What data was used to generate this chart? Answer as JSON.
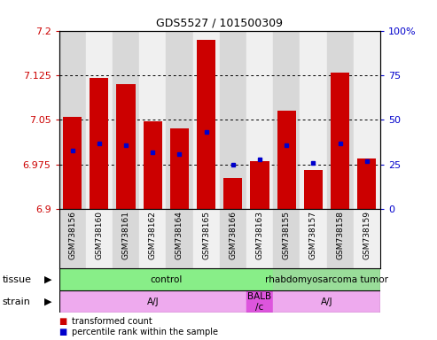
{
  "title": "GDS5527 / 101500309",
  "samples": [
    "GSM738156",
    "GSM738160",
    "GSM738161",
    "GSM738162",
    "GSM738164",
    "GSM738165",
    "GSM738166",
    "GSM738163",
    "GSM738155",
    "GSM738157",
    "GSM738158",
    "GSM738159"
  ],
  "bar_values": [
    7.055,
    7.12,
    7.11,
    7.048,
    7.035,
    7.185,
    6.952,
    6.98,
    7.065,
    6.965,
    7.13,
    6.985
  ],
  "percentile_values": [
    33,
    37,
    36,
    32,
    31,
    43,
    25,
    28,
    36,
    26,
    37,
    27
  ],
  "ymin": 6.9,
  "ymax": 7.2,
  "yticks": [
    6.9,
    6.975,
    7.05,
    7.125,
    7.2
  ],
  "ytick_labels": [
    "6.9",
    "6.975",
    "7.05",
    "7.125",
    "7.2"
  ],
  "y2min": 0,
  "y2max": 100,
  "y2ticks": [
    0,
    25,
    50,
    75,
    100
  ],
  "y2tick_labels": [
    "0",
    "25",
    "50",
    "75",
    "100%"
  ],
  "bar_color": "#cc0000",
  "dot_color": "#0000cc",
  "col_bg_even": "#d8d8d8",
  "col_bg_odd": "#f0f0f0",
  "tissue_labels": [
    {
      "label": "control",
      "start": 0,
      "end": 8,
      "color": "#88ee88"
    },
    {
      "label": "rhabdomyosarcoma tumor",
      "start": 8,
      "end": 12,
      "color": "#99dd99"
    }
  ],
  "strain_labels": [
    {
      "label": "A/J",
      "start": 0,
      "end": 7,
      "color": "#eeaaee"
    },
    {
      "label": "BALB\n/c",
      "start": 7,
      "end": 8,
      "color": "#dd55dd"
    },
    {
      "label": "A/J",
      "start": 8,
      "end": 12,
      "color": "#eeaaee"
    }
  ],
  "legend_items": [
    {
      "color": "#cc0000",
      "label": "transformed count"
    },
    {
      "color": "#0000cc",
      "label": "percentile rank within the sample"
    }
  ]
}
